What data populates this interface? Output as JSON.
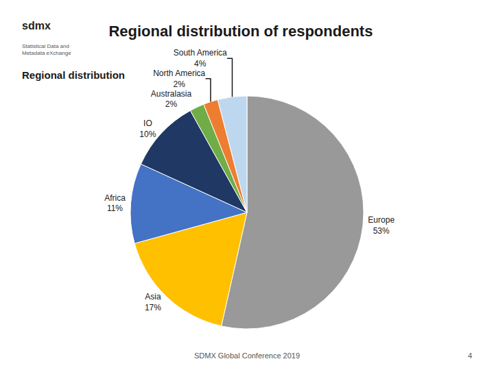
{
  "chart_data": {
    "type": "pie",
    "title": "Regional distribution of respondents",
    "subtitle": "Regional distribution",
    "categories": [
      "Europe",
      "Asia",
      "Africa",
      "IO",
      "Australasia",
      "North America",
      "South America"
    ],
    "values": [
      53,
      17,
      11,
      10,
      2,
      2,
      4
    ],
    "value_labels": [
      "53%",
      "17%",
      "11%",
      "10%",
      "2%",
      "2%",
      "4%"
    ],
    "colors": [
      "#999999",
      "#FFC000",
      "#4472C4",
      "#1F3864",
      "#70AD47",
      "#ED7D31",
      "#BDD7EE"
    ],
    "data_labels": true,
    "annotations": [
      "sdmx",
      "Statistical Data and\nMetadata eXchange",
      "SDMX Global Conference 2019",
      "4"
    ]
  }
}
